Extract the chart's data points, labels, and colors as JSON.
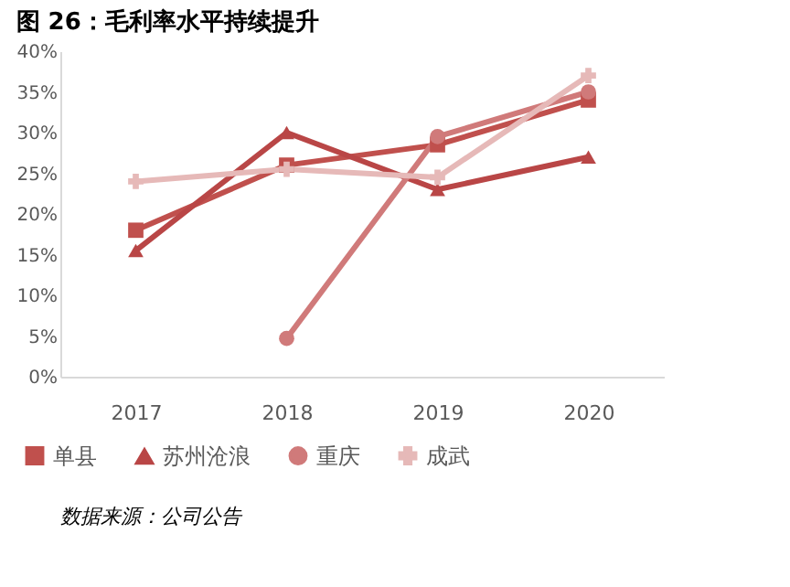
{
  "chart_data": {
    "type": "line",
    "title": "图 26：毛利率水平持续提升",
    "categories": [
      "2017",
      "2018",
      "2019",
      "2020"
    ],
    "series": [
      {
        "name": "单县",
        "color": "#c0504d",
        "marker": "square",
        "values": [
          18,
          26,
          28.5,
          34
        ]
      },
      {
        "name": "苏州沧浪",
        "color": "#b94646",
        "marker": "triangle",
        "values": [
          15.5,
          30,
          23,
          27
        ]
      },
      {
        "name": "重庆",
        "color": "#d07a7a",
        "marker": "circle",
        "values": [
          null,
          4.7,
          29.5,
          35
        ]
      },
      {
        "name": "成武",
        "color": "#e6b9b8",
        "marker": "cross",
        "values": [
          24,
          25.5,
          24.5,
          37
        ]
      }
    ],
    "ylim": [
      0,
      40
    ],
    "yticks": [
      {
        "value": 0,
        "label": "0%"
      },
      {
        "value": 5,
        "label": "5%"
      },
      {
        "value": 10,
        "label": "10%"
      },
      {
        "value": 15,
        "label": "15%"
      },
      {
        "value": 20,
        "label": "20%"
      },
      {
        "value": 25,
        "label": "25%"
      },
      {
        "value": 30,
        "label": "30%"
      },
      {
        "value": 35,
        "label": "35%"
      },
      {
        "value": 40,
        "label": "40%"
      }
    ],
    "grid": false,
    "legend": "bottom",
    "annotations": [
      "数据来源：公司公告"
    ]
  }
}
